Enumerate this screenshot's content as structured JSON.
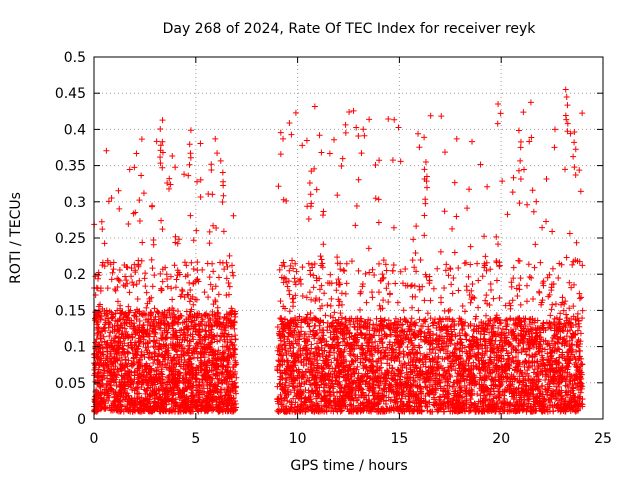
{
  "chart_data": {
    "type": "scatter",
    "title": "Day 268 of 2024, Rate Of TEC Index for receiver reyk",
    "xlabel": "GPS time / hours",
    "ylabel": "ROTI / TECUs",
    "xlim": [
      0,
      25
    ],
    "ylim": [
      0,
      0.5
    ],
    "xticks": [
      0,
      5,
      10,
      15,
      20,
      25
    ],
    "xtick_labels": [
      "0",
      "5",
      "10",
      "15",
      "20",
      "25"
    ],
    "yticks": [
      0,
      0.05,
      0.1,
      0.15,
      0.2,
      0.25,
      0.3,
      0.35,
      0.4,
      0.45,
      0.5
    ],
    "ytick_labels": [
      "0",
      "0.05",
      "0.1",
      "0.15",
      "0.2",
      "0.25",
      "0.3",
      "0.35",
      "0.4",
      "0.45",
      "0.5"
    ],
    "grid": true,
    "marker": "+",
    "color": "#ff0000",
    "series": [
      {
        "name": "ROTI",
        "segments": [
          {
            "t_start": 0.0,
            "t_end": 7.0,
            "n_points": 2400,
            "typical_max": 0.15,
            "peak_max": 0.41
          },
          {
            "t_start": 9.0,
            "t_end": 24.0,
            "n_points": 4200,
            "typical_max": 0.14,
            "peak_max": 0.46
          }
        ],
        "notable_points": [
          {
            "x": 3.3,
            "y": 0.415
          },
          {
            "x": 4.7,
            "y": 0.4
          },
          {
            "x": 6.3,
            "y": 0.36
          },
          {
            "x": 10.6,
            "y": 0.343
          },
          {
            "x": 16.3,
            "y": 0.347
          },
          {
            "x": 20.9,
            "y": 0.4
          },
          {
            "x": 23.2,
            "y": 0.465
          },
          {
            "x": 23.6,
            "y": 0.4
          }
        ]
      }
    ]
  }
}
